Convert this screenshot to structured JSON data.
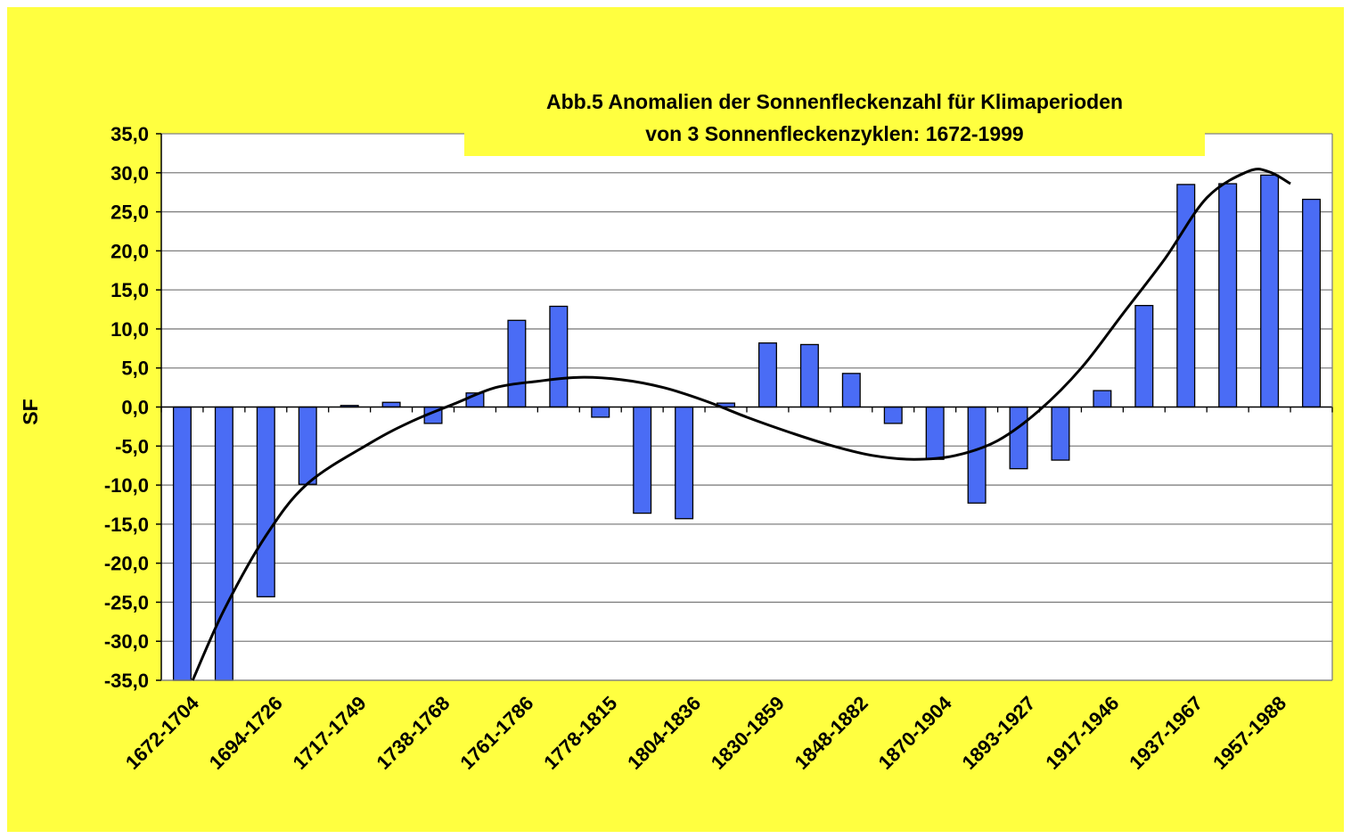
{
  "colors": {
    "background": "#ffff40",
    "plot_area": "#ffffff",
    "bar_fill": "#4a6cf5",
    "bar_stroke": "#000000",
    "trend_line": "#000000",
    "grid": "#808080"
  },
  "chart_data": {
    "type": "bar",
    "title_lines": [
      "Abb.5 Anomalien der Sonnenfleckenzahl für Klimaperioden",
      "von 3 Sonnenfleckenzyklen: 1672-1999"
    ],
    "xlabel": "",
    "ylabel": "SF",
    "ylim": [
      -35,
      35
    ],
    "y_ticks": [
      35,
      30,
      25,
      20,
      15,
      10,
      5,
      0,
      -5,
      -10,
      -15,
      -20,
      -25,
      -30,
      -35
    ],
    "y_tick_labels": [
      "35,0",
      "30,0",
      "25,0",
      "20,0",
      "15,0",
      "10,0",
      "5,0",
      "0,0",
      "-5,0",
      "-10,0",
      "-15,0",
      "-20,0",
      "-25,0",
      "-30,0",
      "-35,0"
    ],
    "grid": true,
    "category_count": 28,
    "x_tick_labels": [
      {
        "index": 0,
        "label": "1672-1704"
      },
      {
        "index": 2,
        "label": "1694-1726"
      },
      {
        "index": 4,
        "label": "1717-1749"
      },
      {
        "index": 6,
        "label": "1738-1768"
      },
      {
        "index": 8,
        "label": "1761-1786"
      },
      {
        "index": 10,
        "label": "1778-1815"
      },
      {
        "index": 12,
        "label": "1804-1836"
      },
      {
        "index": 14,
        "label": "1830-1859"
      },
      {
        "index": 16,
        "label": "1848-1882"
      },
      {
        "index": 18,
        "label": "1870-1904"
      },
      {
        "index": 20,
        "label": "1893-1927"
      },
      {
        "index": 22,
        "label": "1917-1946"
      },
      {
        "index": 24,
        "label": "1937-1967"
      },
      {
        "index": 26,
        "label": "1957-1988"
      }
    ],
    "series": [
      {
        "values": [
          -35.0,
          -35.0,
          -24.3,
          -9.9,
          0.2,
          0.6,
          -2.1,
          1.8,
          11.1,
          12.9,
          -1.3,
          -13.6,
          -14.3,
          0.5,
          8.2,
          8.0,
          4.3,
          -2.1,
          -6.7,
          -12.3,
          -7.9,
          -6.8,
          2.1,
          13.0,
          28.5,
          28.6,
          29.7,
          26.6
        ]
      }
    ],
    "trend_line": {
      "type": "polynomial",
      "x": [
        0.75,
        1.5,
        2.5,
        3.5,
        5,
        6,
        7,
        8,
        9,
        10,
        11,
        12,
        13,
        14,
        15,
        16,
        17,
        18,
        19,
        20,
        21,
        22,
        23,
        24,
        25,
        26,
        26.5,
        27
      ],
      "y": [
        -35.0,
        -26.0,
        -16.5,
        -9.8,
        -4.6,
        -1.8,
        0.4,
        2.5,
        3.3,
        3.8,
        3.5,
        2.5,
        0.8,
        -1.3,
        -3.2,
        -4.9,
        -6.2,
        -6.7,
        -6.2,
        -4.3,
        -0.4,
        5.0,
        12.0,
        19.0,
        26.8,
        30.2,
        30.1,
        28.6
      ]
    }
  }
}
